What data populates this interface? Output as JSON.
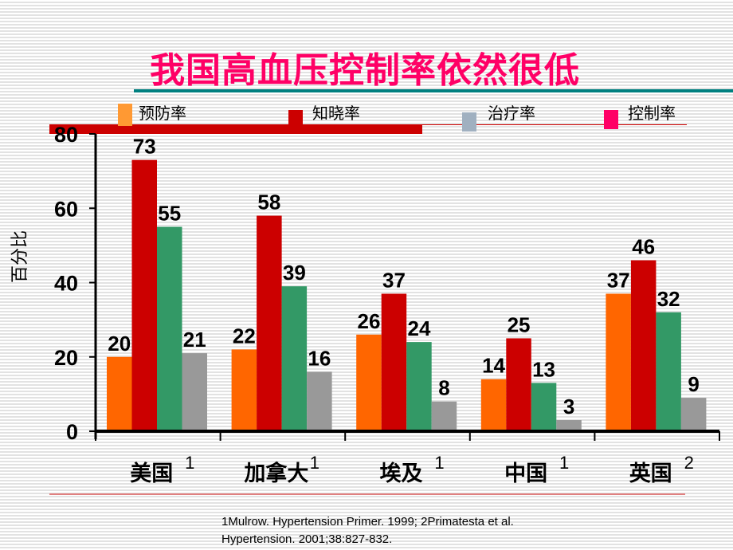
{
  "title": "我国高血压控制率依然很低",
  "legend": [
    {
      "label": "预防率",
      "color": "#ff9933"
    },
    {
      "label": "知晓率",
      "color": "#cc0000"
    },
    {
      "label": "治疗率",
      "color": "#a0b0c0"
    },
    {
      "label": "控制率",
      "color": "#ff0066"
    }
  ],
  "chart_data": {
    "type": "bar",
    "ylabel": "百分比",
    "ylim": [
      0,
      80
    ],
    "yticks": [
      0,
      20,
      40,
      60,
      80
    ],
    "categories": [
      "美国",
      "加拿大",
      "埃及",
      "中国",
      "英国"
    ],
    "category_superscripts": [
      "1",
      "1",
      "1",
      "1",
      "2"
    ],
    "series": [
      {
        "color": "#ff6600",
        "values": [
          20,
          22,
          26,
          14,
          37
        ]
      },
      {
        "color": "#cc0000",
        "values": [
          73,
          58,
          37,
          25,
          46
        ]
      },
      {
        "color": "#339966",
        "values": [
          55,
          39,
          24,
          13,
          32
        ]
      },
      {
        "color": "#999999",
        "values": [
          21,
          16,
          8,
          3,
          9
        ]
      }
    ],
    "grid": false
  },
  "footnote": {
    "line1": "1Mulrow. Hypertension Primer. 1999; 2Primatesta et al.",
    "line2": "Hypertension. 2001;38:827-832."
  }
}
